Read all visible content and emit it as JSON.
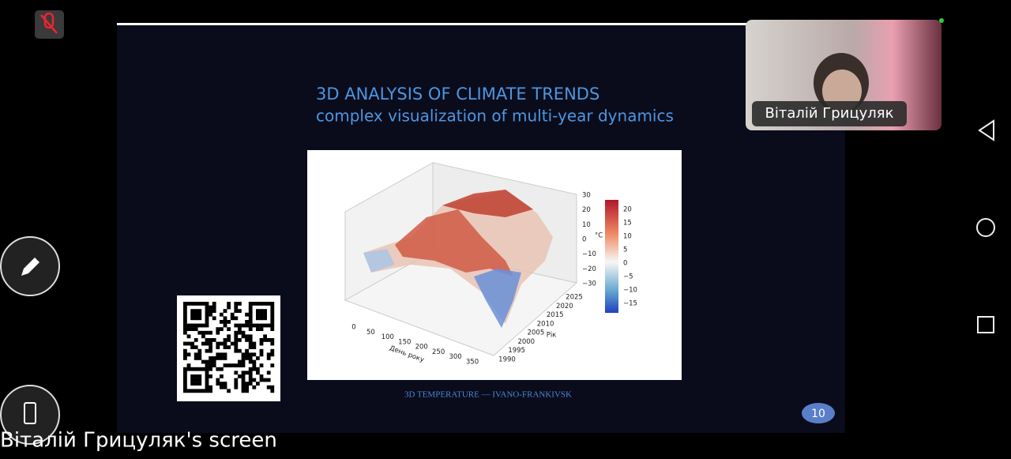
{
  "slide": {
    "title": "3D ANALYSIS OF CLIMATE TRENDS",
    "subtitle": "complex visualization of multi-year dynamics",
    "figure": {
      "z_ticks": [
        "30",
        "20",
        "10",
        "0",
        "−10",
        "−20",
        "−30"
      ],
      "z_label": "°C",
      "colorbar_ticks": [
        "20",
        "15",
        "10",
        "5",
        "0",
        "−5",
        "−10",
        "−15"
      ],
      "x_ticks": [
        "0",
        "50",
        "100",
        "150",
        "200",
        "250",
        "300",
        "350"
      ],
      "x_label": "День року",
      "y_ticks": [
        "1990",
        "1995",
        "2000",
        "2005",
        "2010",
        "2015",
        "2020",
        "2025"
      ],
      "y_label": "Рік"
    },
    "caption": "3D TEMPERATURE — IVANO-FRANKIVSK",
    "page_number": "10"
  },
  "participant": {
    "name": "Віталій Грицуляк"
  },
  "footer": "Віталій Грицуляк's screen"
}
